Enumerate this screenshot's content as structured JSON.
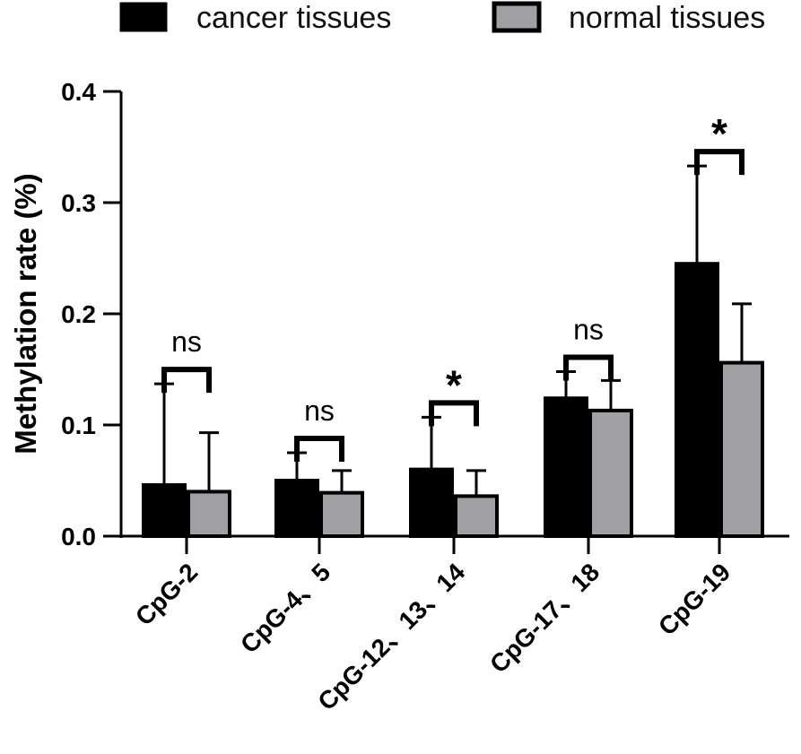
{
  "chart_data": {
    "type": "bar",
    "title": "",
    "xlabel": "",
    "ylabel": "Methylation rate (%)",
    "ylim": [
      0,
      0.4
    ],
    "yticks": [
      "0.0",
      "0.1",
      "0.2",
      "0.3",
      "0.4"
    ],
    "categories": [
      "CpG-2",
      "CpG-4、5",
      "CpG-12、13、14",
      "CpG-17、18",
      "CpG-19"
    ],
    "series": [
      {
        "name": "cancer tissues",
        "color": "#000000",
        "values": [
          0.046,
          0.05,
          0.06,
          0.124,
          0.245
        ],
        "errors": [
          0.091,
          0.025,
          0.047,
          0.024,
          0.088
        ]
      },
      {
        "name": "normal tissues",
        "color": "#a0a0a4",
        "values": [
          0.04,
          0.039,
          0.036,
          0.113,
          0.156
        ],
        "errors": [
          0.053,
          0.02,
          0.023,
          0.027,
          0.053
        ]
      }
    ],
    "significance": [
      "ns",
      "ns",
      "*",
      "ns",
      "*"
    ],
    "legend_position": "top"
  }
}
